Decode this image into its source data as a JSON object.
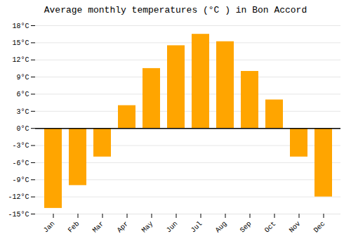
{
  "chart_data": {
    "type": "bar",
    "title": "Average monthly temperatures (°C ) in Bon Accord",
    "categories": [
      "Jan",
      "Feb",
      "Mar",
      "Apr",
      "May",
      "Jun",
      "Jul",
      "Aug",
      "Sep",
      "Oct",
      "Nov",
      "Dec"
    ],
    "values": [
      -14,
      -10,
      -5,
      4,
      10.5,
      14.5,
      16.5,
      15.2,
      10,
      5,
      -5,
      -12
    ],
    "color": "#FFA500",
    "ylim": [
      -15,
      18
    ],
    "yticks": [
      {
        "value": -15,
        "label": "-15°C"
      },
      {
        "value": -12,
        "label": "-12°C"
      },
      {
        "value": -9,
        "label": "-9°C"
      },
      {
        "value": -6,
        "label": "-6°C"
      },
      {
        "value": -3,
        "label": "-3°C"
      },
      {
        "value": 0,
        "label": "0°C"
      },
      {
        "value": 3,
        "label": "3°C"
      },
      {
        "value": 6,
        "label": "6°C"
      },
      {
        "value": 9,
        "label": "9°C"
      },
      {
        "value": 12,
        "label": "12°C"
      },
      {
        "value": 15,
        "label": "15°C"
      },
      {
        "value": 18,
        "label": "18°C"
      }
    ],
    "grid": true
  }
}
